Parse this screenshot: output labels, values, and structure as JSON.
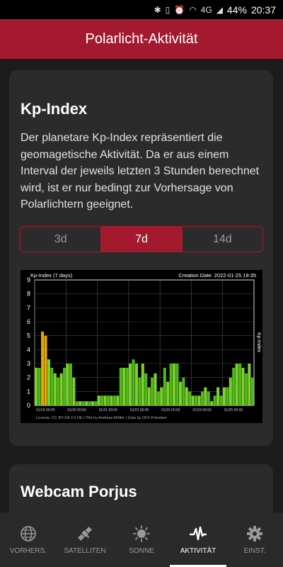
{
  "status": {
    "battery": "44%",
    "time": "20:37",
    "network": "4G"
  },
  "appbar": {
    "title": "Polarlicht-Aktivität"
  },
  "kp_card": {
    "title": "Kp-Index",
    "description": "Der planetare Kp-Index repräsentiert die geomagetische Aktivität. Da er aus einem Interval der jeweils letzten 3 Stunden berechnet wird, ist er nur bedingt zur Vorhersage von Polarlichtern geeignet.",
    "range_options": [
      "3d",
      "7d",
      "14d"
    ],
    "selected_range": "7d"
  },
  "webcam_card": {
    "title": "Webcam Porjus"
  },
  "chart_data": {
    "type": "bar",
    "title": "Kp-Index (7 days)",
    "creation_date": "Creation Date: 2022-01-25 19:35",
    "ylabel": "Kp-Index",
    "ylim": [
      0,
      9
    ],
    "yticks": [
      0,
      1,
      2,
      3,
      4,
      5,
      6,
      7,
      8,
      9
    ],
    "x_tick_labels": [
      "01/19 00:00",
      "01/20 00:00",
      "01/21 00:00",
      "01/22 00:00",
      "01/23 00:00",
      "01/24 00:00",
      "01/25 00:00"
    ],
    "license": "License: CC BY-SA 3.0 DE | Plot by Andreas Möller | Data by GFZ-Potsdam",
    "values": [
      2.7,
      2.7,
      5.3,
      5.0,
      3.3,
      2.7,
      2.3,
      2.0,
      2.3,
      2.7,
      3.0,
      3.0,
      2.0,
      0.3,
      0.3,
      0.3,
      0.3,
      0.3,
      0.3,
      0.3,
      0.7,
      0.7,
      0.7,
      0.7,
      0.7,
      0.7,
      0.7,
      2.7,
      2.7,
      2.7,
      3.0,
      3.3,
      3.0,
      2.0,
      3.0,
      2.3,
      1.3,
      2.0,
      2.3,
      1.0,
      1.3,
      2.7,
      1.7,
      3.0,
      3.0,
      3.0,
      1.7,
      2.0,
      1.3,
      1.0,
      0.7,
      0.7,
      0.7,
      1.0,
      1.3,
      1.0,
      0.3,
      0.7,
      1.3,
      0.7,
      1.3,
      1.3,
      2.0,
      2.7,
      3.0,
      3.0,
      2.7,
      2.3,
      3.0,
      2.0
    ]
  },
  "nav": {
    "items": [
      {
        "label": "VORHERS.",
        "icon": "globe-icon"
      },
      {
        "label": "SATELLITEN",
        "icon": "satellite-icon"
      },
      {
        "label": "SONNE",
        "icon": "sun-icon"
      },
      {
        "label": "AKTIVITÄT",
        "icon": "activity-icon"
      },
      {
        "label": "EINST.",
        "icon": "gear-icon"
      }
    ],
    "active_index": 3
  }
}
